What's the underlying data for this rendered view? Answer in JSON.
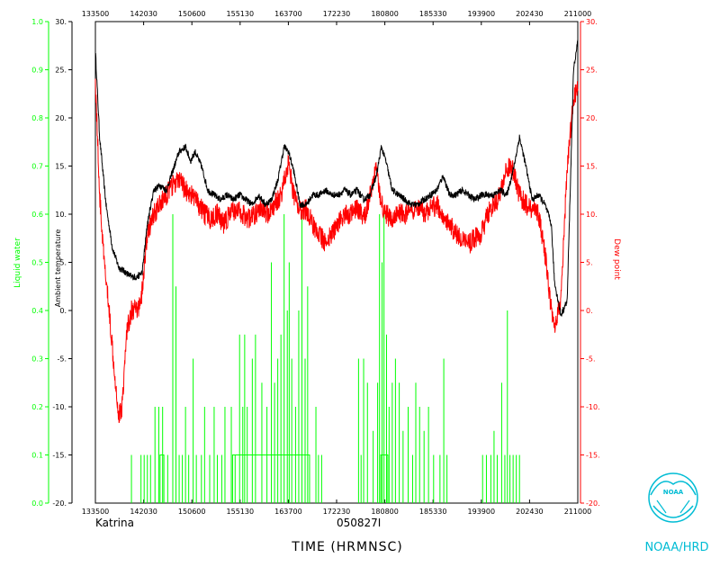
{
  "chart_data": {
    "type": "line",
    "title": "",
    "storm_name": "Katrina",
    "flight_id": "050827I",
    "xlabel": "TIME (HRMNSC)",
    "x_ticks": [
      "133500",
      "142030",
      "150600",
      "155130",
      "163700",
      "172230",
      "180800",
      "185330",
      "193900",
      "202430",
      "211000"
    ],
    "x_tick_hours": [
      13.5833,
      14.3417,
      15.1,
      15.8583,
      16.6167,
      17.375,
      18.1333,
      18.8917,
      19.65,
      20.4083,
      21.1667
    ],
    "xlim_hours": [
      13.5833,
      21.1667
    ],
    "left_outer_axis": {
      "label": "Liquid water",
      "color": "#00ff00",
      "ylim": [
        0.0,
        1.0
      ],
      "ticks": [
        "0.0",
        "0.1",
        "0.2",
        "0.3",
        "0.4",
        "0.5",
        "0.6",
        "0.7",
        "0.8",
        "0.9",
        "1.0"
      ]
    },
    "left_inner_axis": {
      "label": "Ambient temperature",
      "color": "#000000",
      "ylim": [
        -20,
        30
      ],
      "ticks": [
        "-20.",
        "-15.",
        "-10.",
        "-5.",
        "0.",
        "5.",
        "10.",
        "15.",
        "20.",
        "25.",
        "30."
      ]
    },
    "right_axis": {
      "label": "Dew point",
      "color": "#ff0000",
      "ylim": [
        -20,
        30
      ],
      "ticks": [
        "-20.",
        "-15.",
        "-10.",
        "-5.",
        "0.",
        "5.",
        "10.",
        "15.",
        "20.",
        "25.",
        "30."
      ]
    },
    "series": [
      {
        "name": "Ambient temperature",
        "color": "#000000",
        "axis": "left_inner",
        "x": [
          13.5833,
          13.65,
          13.75,
          13.85,
          13.95,
          14.05,
          14.15,
          14.25,
          14.32,
          14.4,
          14.5,
          14.6,
          14.7,
          14.8,
          14.9,
          15.0,
          15.08,
          15.15,
          15.25,
          15.35,
          15.45,
          15.55,
          15.65,
          15.75,
          15.85,
          15.95,
          16.05,
          16.15,
          16.25,
          16.35,
          16.45,
          16.55,
          16.62,
          16.7,
          16.8,
          16.9,
          17.0,
          17.1,
          17.2,
          17.3,
          17.4,
          17.5,
          17.6,
          17.7,
          17.8,
          17.9,
          18.0,
          18.08,
          18.15,
          18.25,
          18.35,
          18.45,
          18.55,
          18.65,
          18.75,
          18.85,
          18.95,
          19.05,
          19.15,
          19.25,
          19.35,
          19.45,
          19.55,
          19.65,
          19.75,
          19.85,
          19.95,
          20.05,
          20.15,
          20.25,
          20.35,
          20.45,
          20.55,
          20.65,
          20.75,
          20.8,
          20.9,
          21.0,
          21.1,
          21.1667
        ],
        "y": [
          27,
          18,
          11,
          6.5,
          4.5,
          4,
          3.5,
          3.5,
          4,
          9,
          12.5,
          13,
          12.5,
          14.5,
          16.5,
          17,
          15.5,
          16.5,
          15,
          12.5,
          12,
          11.5,
          12,
          11.5,
          12,
          11.5,
          11,
          12,
          11,
          11.5,
          13.5,
          17,
          16.5,
          14.5,
          11,
          11,
          12,
          12,
          12.5,
          12,
          12,
          12.5,
          12,
          12.5,
          11.5,
          12,
          14,
          17,
          15.5,
          12.5,
          12,
          11.5,
          11,
          11,
          11.5,
          12,
          12.5,
          14,
          12,
          12,
          12.5,
          12,
          11.5,
          12,
          12,
          12,
          12.5,
          12,
          14.5,
          18,
          15,
          11.5,
          12,
          11,
          9,
          3,
          -0.5,
          1,
          25,
          28
        ]
      },
      {
        "name": "Dew point",
        "color": "#ff0000",
        "axis": "right",
        "x": [
          13.5833,
          13.65,
          13.72,
          13.8,
          13.88,
          13.95,
          14.0,
          14.08,
          14.15,
          14.25,
          14.32,
          14.4,
          14.5,
          14.6,
          14.7,
          14.8,
          14.9,
          15.0,
          15.1,
          15.2,
          15.3,
          15.4,
          15.5,
          15.6,
          15.7,
          15.8,
          15.9,
          16.0,
          16.1,
          16.2,
          16.3,
          16.4,
          16.5,
          16.62,
          16.7,
          16.8,
          16.9,
          17.0,
          17.1,
          17.2,
          17.3,
          17.4,
          17.5,
          17.6,
          17.7,
          17.8,
          17.9,
          18.0,
          18.08,
          18.15,
          18.25,
          18.35,
          18.45,
          18.55,
          18.65,
          18.75,
          18.85,
          18.95,
          19.05,
          19.15,
          19.25,
          19.35,
          19.45,
          19.55,
          19.65,
          19.75,
          19.85,
          19.95,
          20.05,
          20.15,
          20.25,
          20.35,
          20.45,
          20.55,
          20.65,
          20.75,
          20.8,
          20.9,
          21.0,
          21.1,
          21.1667
        ],
        "y": [
          24,
          12,
          5,
          0,
          -6,
          -11,
          -10,
          -2,
          0,
          0,
          2,
          8,
          10,
          11,
          12,
          13,
          13.5,
          12.5,
          12,
          11,
          10,
          9.5,
          10,
          9,
          10,
          10.5,
          10,
          9.5,
          10,
          10.5,
          10,
          11,
          12,
          15.5,
          12,
          10.5,
          10.5,
          9,
          8,
          7,
          8,
          9,
          10,
          10,
          10.5,
          9.5,
          12,
          15,
          11,
          10,
          9.5,
          10,
          10,
          10,
          10.5,
          10,
          10.5,
          11,
          10,
          9,
          8,
          7.5,
          7,
          7.5,
          8,
          10,
          11,
          12,
          15,
          14.5,
          12,
          11,
          10.5,
          10,
          6,
          0,
          -2,
          1,
          15,
          22,
          23
        ]
      },
      {
        "name": "Liquid water",
        "color": "#00ff00",
        "axis": "left_outer",
        "style": "spikes",
        "baseline_segments": [
          [
            14.6,
            14.66,
            0.1
          ],
          [
            15.74,
            16.95,
            0.1
          ],
          [
            18.07,
            18.18,
            0.1
          ]
        ],
        "spikes": [
          [
            14.15,
            0.1
          ],
          [
            14.3,
            0.1
          ],
          [
            14.35,
            0.1
          ],
          [
            14.4,
            0.1
          ],
          [
            14.45,
            0.1
          ],
          [
            14.52,
            0.2
          ],
          [
            14.58,
            0.2
          ],
          [
            14.64,
            0.2
          ],
          [
            14.72,
            0.1
          ],
          [
            14.8,
            0.6
          ],
          [
            14.85,
            0.45
          ],
          [
            14.9,
            0.1
          ],
          [
            14.95,
            0.1
          ],
          [
            15.0,
            0.2
          ],
          [
            15.05,
            0.1
          ],
          [
            15.12,
            0.3
          ],
          [
            15.17,
            0.1
          ],
          [
            15.25,
            0.1
          ],
          [
            15.3,
            0.2
          ],
          [
            15.38,
            0.1
          ],
          [
            15.45,
            0.2
          ],
          [
            15.5,
            0.1
          ],
          [
            15.57,
            0.1
          ],
          [
            15.62,
            0.2
          ],
          [
            15.72,
            0.2
          ],
          [
            15.78,
            0.1
          ],
          [
            15.85,
            0.35
          ],
          [
            15.9,
            0.2
          ],
          [
            15.93,
            0.35
          ],
          [
            15.97,
            0.2
          ],
          [
            16.05,
            0.3
          ],
          [
            16.1,
            0.35
          ],
          [
            16.2,
            0.25
          ],
          [
            16.28,
            0.2
          ],
          [
            16.35,
            0.5
          ],
          [
            16.4,
            0.25
          ],
          [
            16.45,
            0.3
          ],
          [
            16.5,
            0.35
          ],
          [
            16.55,
            0.6
          ],
          [
            16.6,
            0.4
          ],
          [
            16.63,
            0.5
          ],
          [
            16.67,
            0.3
          ],
          [
            16.73,
            0.2
          ],
          [
            16.78,
            0.4
          ],
          [
            16.83,
            0.6
          ],
          [
            16.88,
            0.3
          ],
          [
            16.92,
            0.45
          ],
          [
            17.05,
            0.2
          ],
          [
            17.09,
            0.1
          ],
          [
            17.14,
            0.1
          ],
          [
            17.72,
            0.3
          ],
          [
            17.76,
            0.1
          ],
          [
            17.8,
            0.3
          ],
          [
            17.86,
            0.25
          ],
          [
            17.95,
            0.15
          ],
          [
            18.02,
            0.25
          ],
          [
            18.05,
            0.6
          ],
          [
            18.09,
            0.5
          ],
          [
            18.12,
            0.6
          ],
          [
            18.16,
            0.35
          ],
          [
            18.2,
            0.2
          ],
          [
            18.25,
            0.25
          ],
          [
            18.3,
            0.3
          ],
          [
            18.36,
            0.25
          ],
          [
            18.42,
            0.15
          ],
          [
            18.5,
            0.2
          ],
          [
            18.57,
            0.1
          ],
          [
            18.62,
            0.25
          ],
          [
            18.68,
            0.2
          ],
          [
            18.75,
            0.15
          ],
          [
            18.82,
            0.2
          ],
          [
            18.9,
            0.1
          ],
          [
            19.0,
            0.1
          ],
          [
            19.06,
            0.3
          ],
          [
            19.11,
            0.1
          ],
          [
            19.67,
            0.1
          ],
          [
            19.73,
            0.1
          ],
          [
            19.8,
            0.1
          ],
          [
            19.85,
            0.15
          ],
          [
            19.9,
            0.1
          ],
          [
            19.97,
            0.25
          ],
          [
            20.02,
            0.1
          ],
          [
            20.06,
            0.4
          ],
          [
            20.1,
            0.1
          ],
          [
            20.15,
            0.1
          ],
          [
            20.2,
            0.1
          ],
          [
            20.25,
            0.1
          ]
        ]
      }
    ],
    "grid": false,
    "legend": "none"
  },
  "branding": {
    "org_label": "NOAA/HRD",
    "logo_text": "NOAA"
  }
}
